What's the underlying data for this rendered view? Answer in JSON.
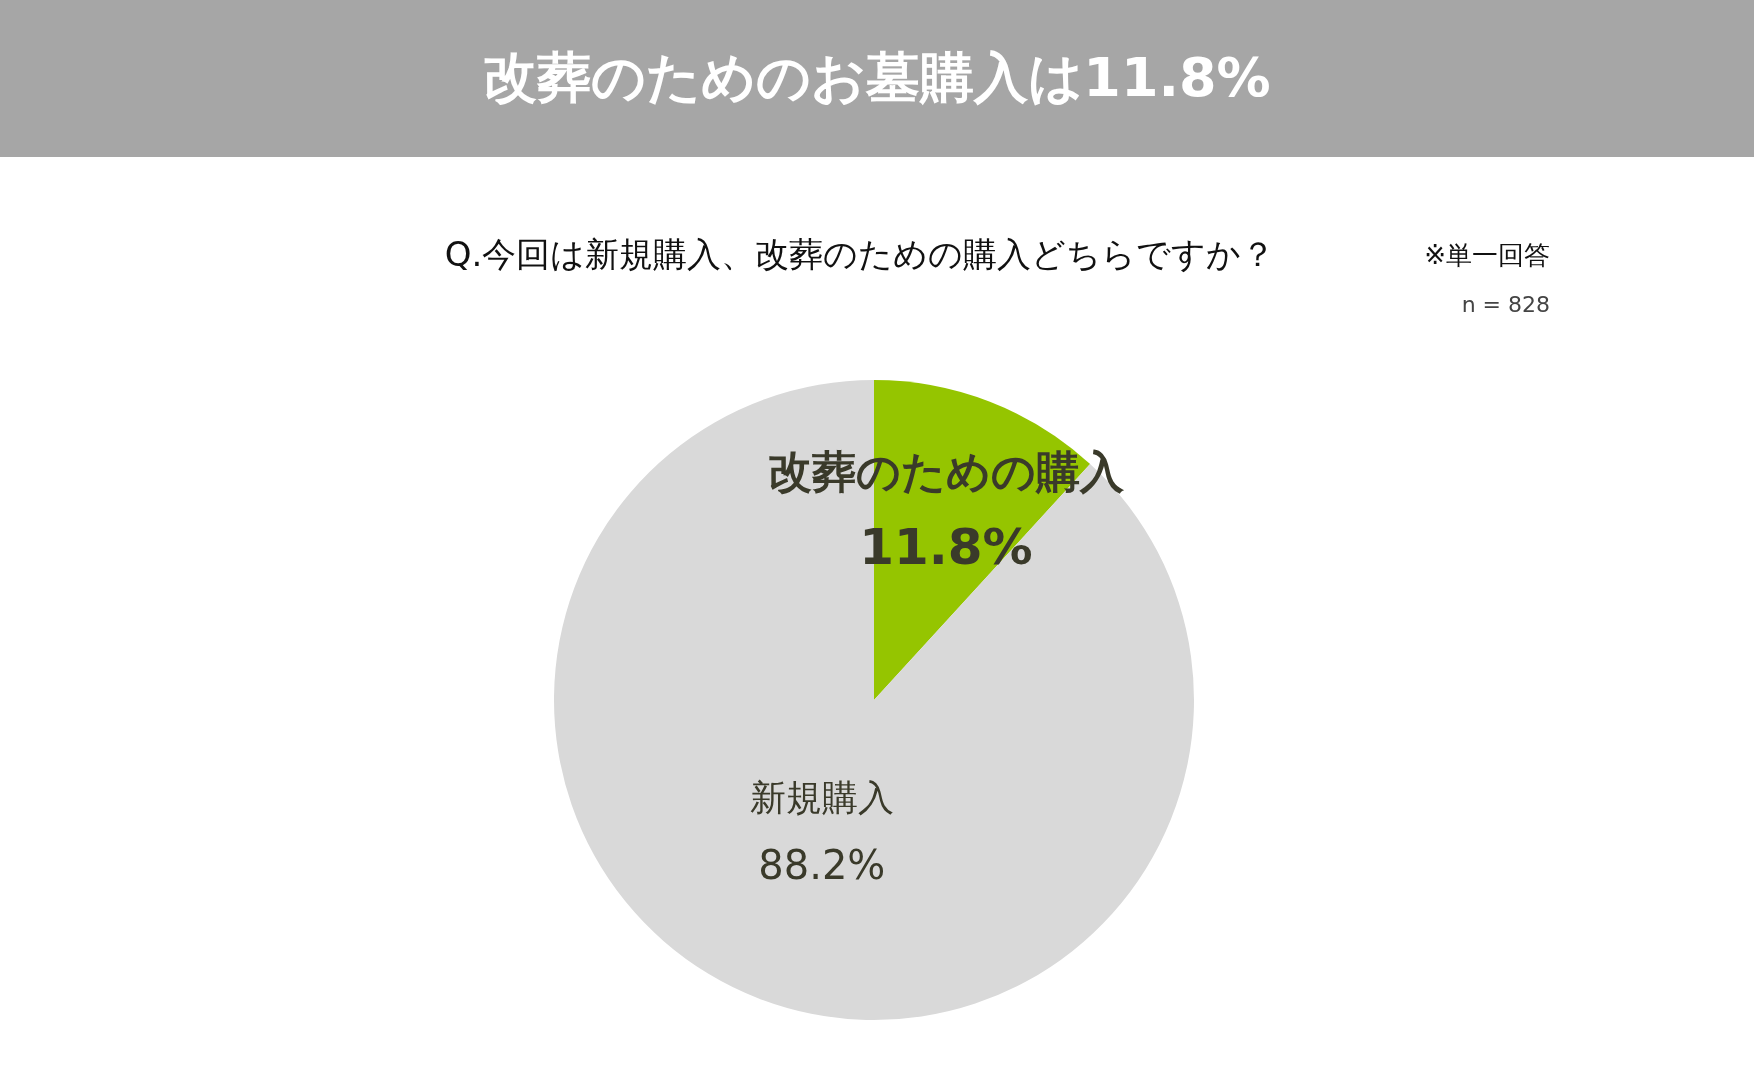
{
  "chart_data": {
    "type": "pie",
    "title": "改葬のためのお墓購入は11.8%",
    "subtitle": "Q.今回は新規購入、改葬のための購入どちらですか？",
    "annotations": [
      "※単一回答",
      "n = 828"
    ],
    "categories": [
      "改葬のための購入",
      "新規購入"
    ],
    "values": [
      11.8,
      88.2
    ],
    "colors": [
      "#95c500",
      "#d9d9d9"
    ],
    "value_labels": [
      "11.8%",
      "88.2%"
    ],
    "legend": false
  }
}
